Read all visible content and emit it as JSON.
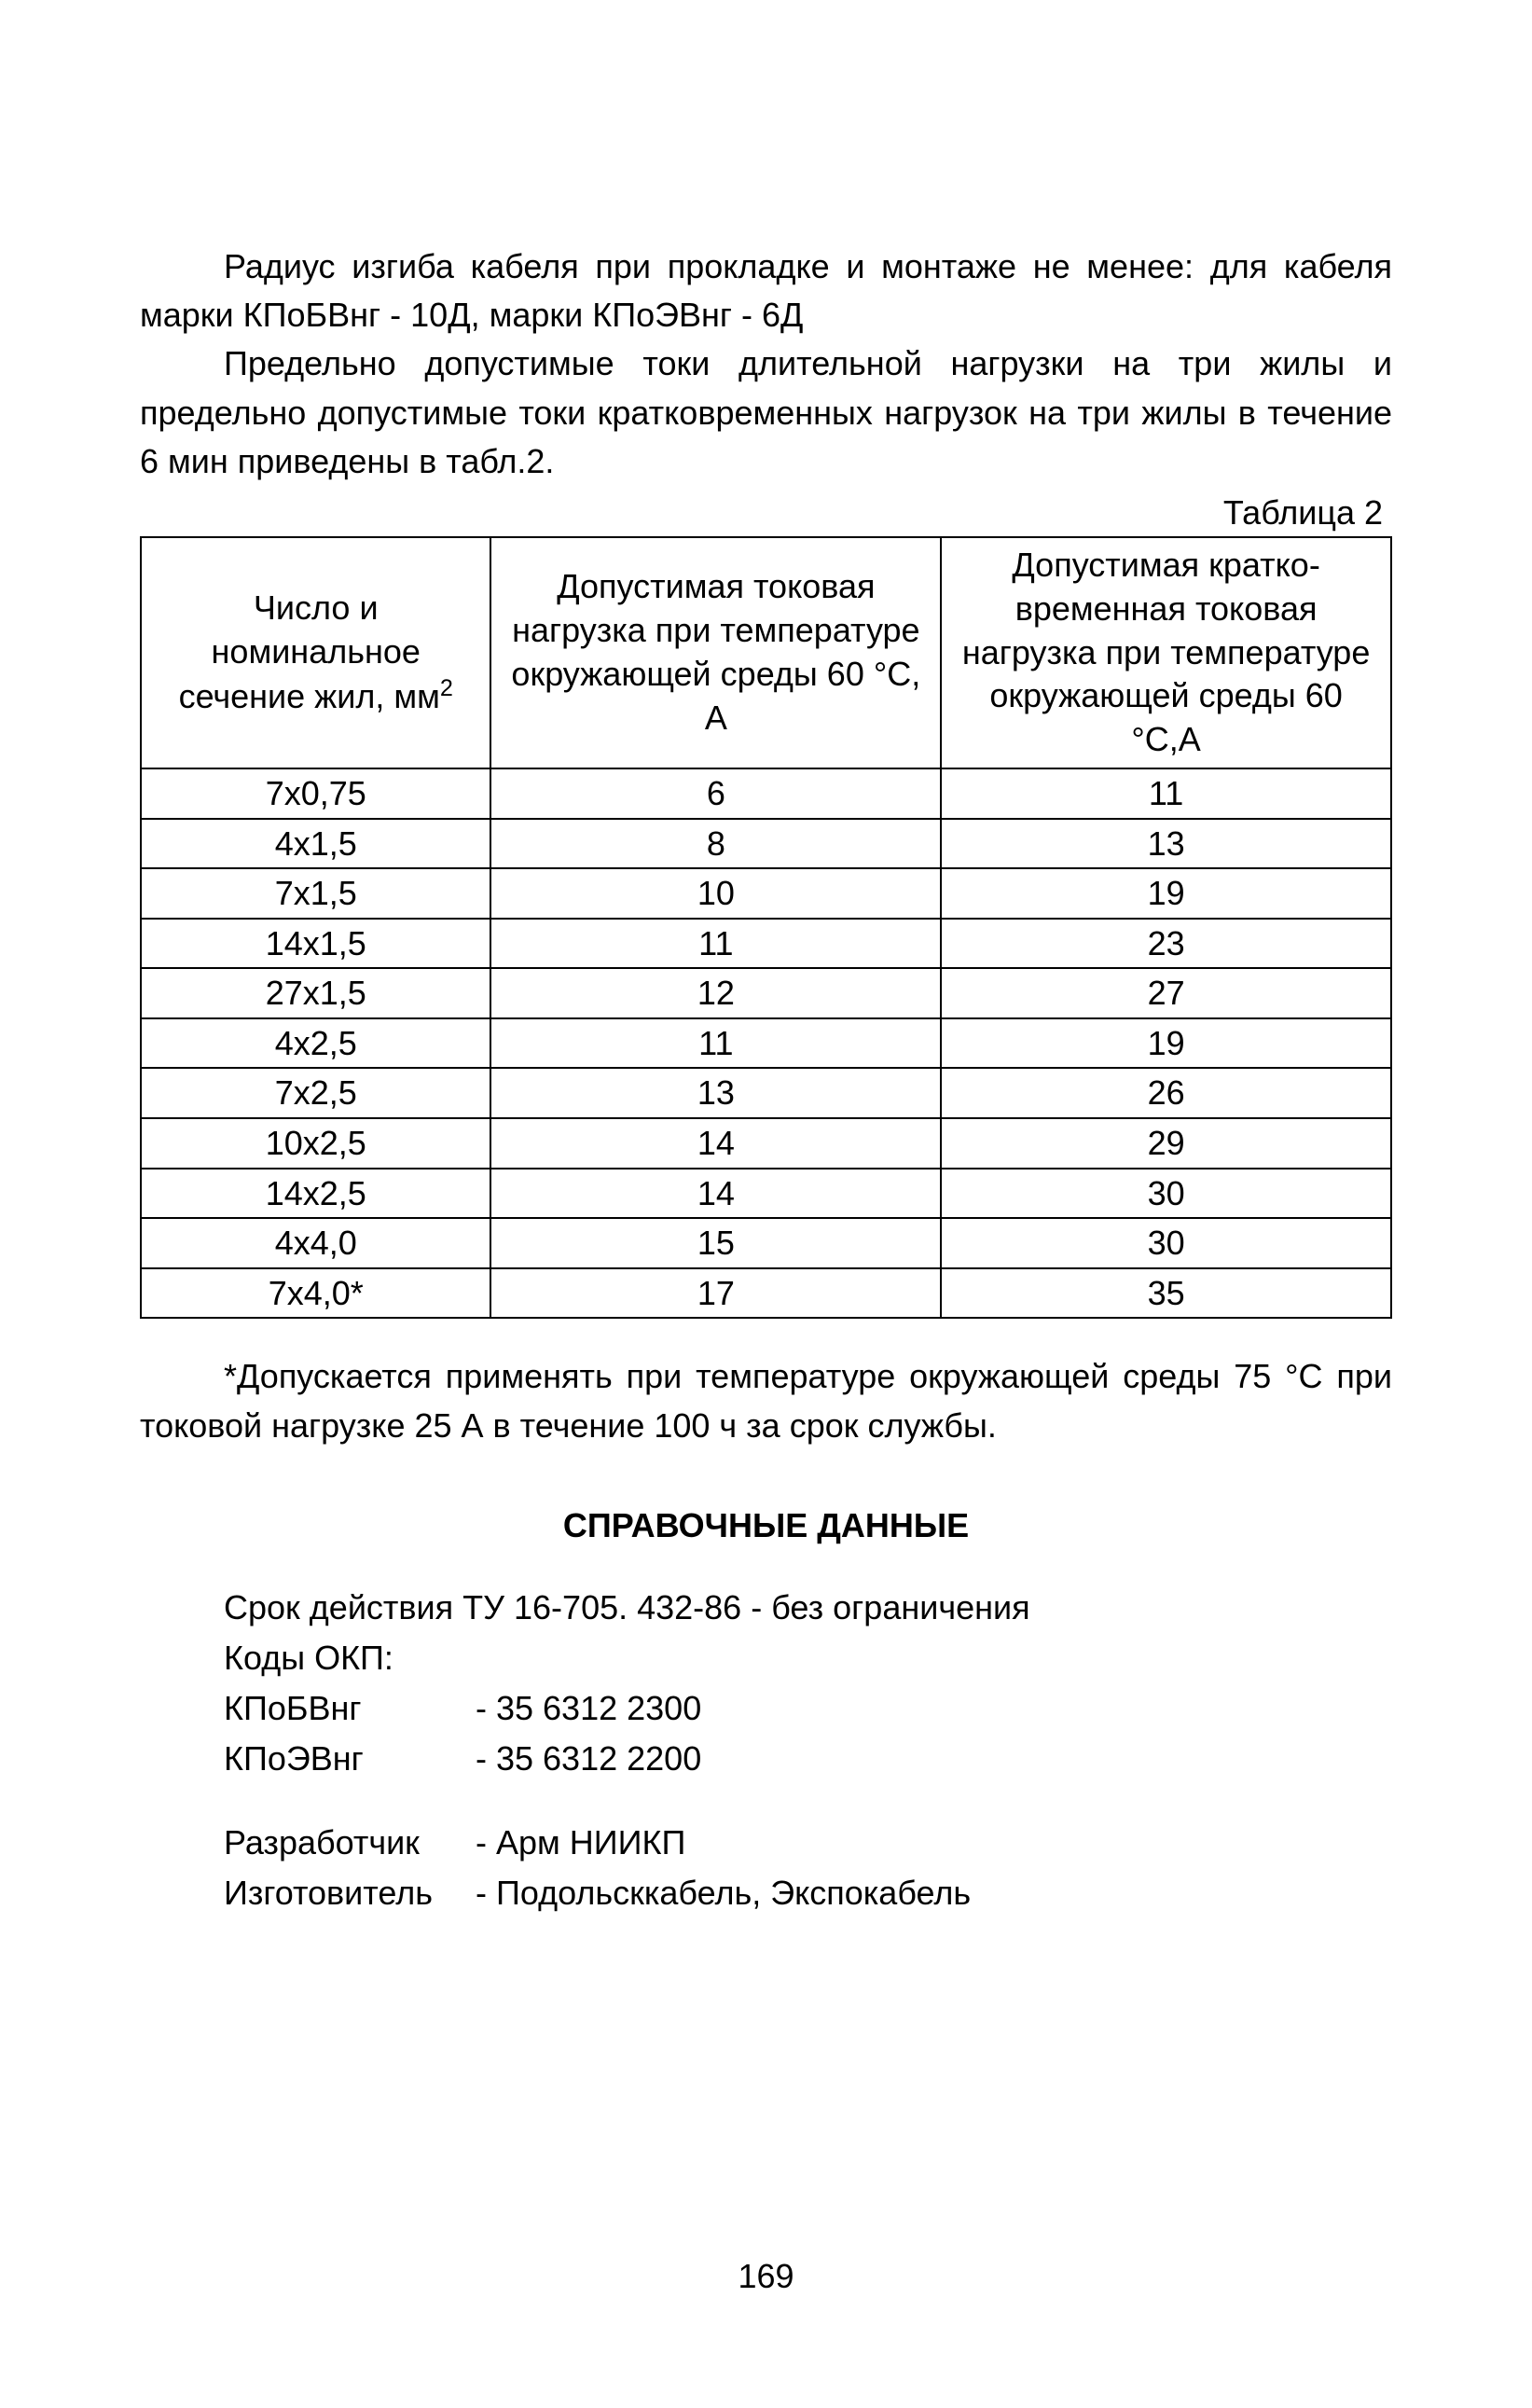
{
  "paragraphs": {
    "p1": "Радиус изгиба кабеля при прокладке и монтаже не менее: для кабеля марки КПоБВнг - 10Д, марки КПоЭВнг - 6Д",
    "p2": "Предельно допустимые токи длительной нагрузки на три жилы и предельно допустимые токи кратковременных нагрузок на три жилы в течение 6 мин приведены в табл.2."
  },
  "table": {
    "caption": "Таблица 2",
    "columns": [
      {
        "header_pre": "Число и номинальное сечение жил, мм",
        "header_sup": "2"
      },
      {
        "header": "Допустимая токовая нагрузка при температуре окружающей среды 60 °С, А"
      },
      {
        "header": "Допустимая кратко­временная токовая нагрузка при температуре окружающей среды 60 °С,А"
      }
    ],
    "rows": [
      [
        "7х0,75",
        "6",
        "11"
      ],
      [
        "4х1,5",
        "8",
        "13"
      ],
      [
        "7х1,5",
        "10",
        "19"
      ],
      [
        "14х1,5",
        "11",
        "23"
      ],
      [
        "27х1,5",
        "12",
        "27"
      ],
      [
        "4х2,5",
        "11",
        "19"
      ],
      [
        "7х2,5",
        "13",
        "26"
      ],
      [
        "10х2,5",
        "14",
        "29"
      ],
      [
        "14х2,5",
        "14",
        "30"
      ],
      [
        "4х4,0",
        "15",
        "30"
      ],
      [
        "7х4,0*",
        "17",
        "35"
      ]
    ],
    "col_widths": [
      "28%",
      "36%",
      "36%"
    ]
  },
  "footnote": "*Допускается применять при температуре окружающей среды 75 °С при токовой нагрузке 25 А в течение 100 ч за срок службы.",
  "reference": {
    "heading": "СПРАВОЧНЫЕ ДАННЫЕ",
    "line1": "Срок действия ТУ 16-705. 432-86 - без ограничения",
    "line2": "Коды ОКП:",
    "codes": [
      {
        "label": "КПоБВнг",
        "value": "- 35 6312 2300"
      },
      {
        "label": "КПоЭВнг",
        "value": "- 35 6312 2200"
      }
    ],
    "info": [
      {
        "label": "Разработчик",
        "value": "- Арм НИИКП"
      },
      {
        "label": "Изготовитель",
        "value": "-  Подольсккабель, Экспокабель"
      }
    ]
  },
  "page_number": "169"
}
